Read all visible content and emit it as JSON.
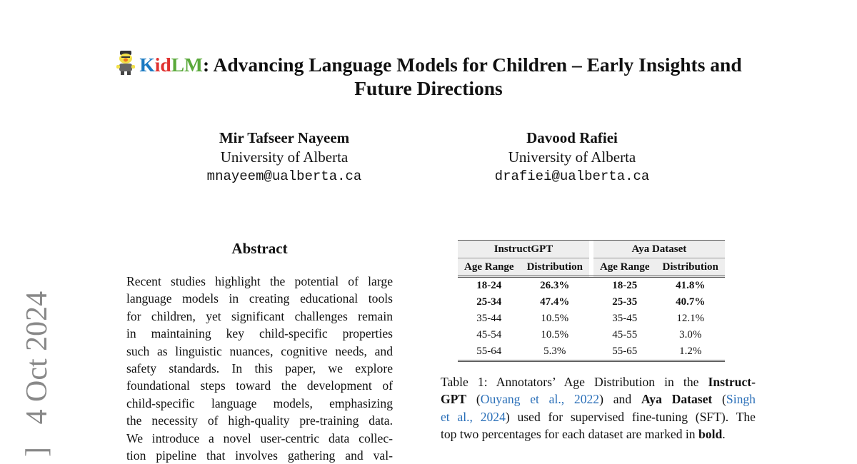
{
  "title": {
    "brand_k": "K",
    "brand_id": "id",
    "brand_lm": "LM",
    "rest_line1": ": Advancing Language Models for Children – Early Insights and",
    "line2": "Future Directions",
    "logo": "kidlm-mascot-logo"
  },
  "authors": [
    {
      "name": "Mir Tafseer Nayeem",
      "affiliation": "University of Alberta",
      "email": "mnayeem@ualberta.ca"
    },
    {
      "name": "Davood Rafiei",
      "affiliation": "University of Alberta",
      "email": "drafiei@ualberta.ca"
    }
  ],
  "abstract": {
    "heading": "Abstract",
    "lines": [
      "Recent studies highlight the potential of large",
      "language models in creating educational tools",
      "for children, yet significant challenges remain",
      "in maintaining key child-specific properties",
      "such as linguistic nuances, cognitive needs, and",
      "safety standards.  In this paper, we explore",
      "foundational steps toward the development of",
      "child-specific language models, emphasizing",
      "the necessity of high-quality pre-training data.",
      "We introduce a novel user-centric data collec-",
      "tion pipeline that involves gathering and val-"
    ]
  },
  "arxiv_stamp": "]   4 Oct 2024",
  "table": {
    "groups": [
      "InstructGPT",
      "Aya Dataset"
    ],
    "columns": [
      "Age Range",
      "Distribution",
      "Age Range",
      "Distribution"
    ],
    "rows": [
      {
        "cells": [
          "18-24",
          "26.3%",
          "18-25",
          "41.8%"
        ],
        "bold": true
      },
      {
        "cells": [
          "25-34",
          "47.4%",
          "25-35",
          "40.7%"
        ],
        "bold": true
      },
      {
        "cells": [
          "35-44",
          "10.5%",
          "35-45",
          "12.1%"
        ],
        "bold": false
      },
      {
        "cells": [
          "45-54",
          "10.5%",
          "45-55",
          "3.0%"
        ],
        "bold": false
      },
      {
        "cells": [
          "55-64",
          "5.3%",
          "55-65",
          "1.2%"
        ],
        "bold": false
      }
    ]
  },
  "caption": {
    "l1a": "Table 1: Annotators’ Age Distribution in the ",
    "l1b": "Instruct-",
    "l2a": "GPT",
    "l2b": " (",
    "l2c": "Ouyang et al., 2022",
    "l2d": ") and ",
    "l2e": "Aya Dataset",
    "l2f": " (",
    "l2g": "Singh",
    "l3a": "et al., 2024",
    "l3b": ") used for supervised fine-tuning (SFT). The",
    "l4a": "top two percentages for each dataset are marked in ",
    "l4b": "bold",
    "l4c": "."
  },
  "colors": {
    "k": "#1b7ac2",
    "id": "#e0312f",
    "lm": "#5aa93b",
    "link": "#2a6fb8"
  }
}
